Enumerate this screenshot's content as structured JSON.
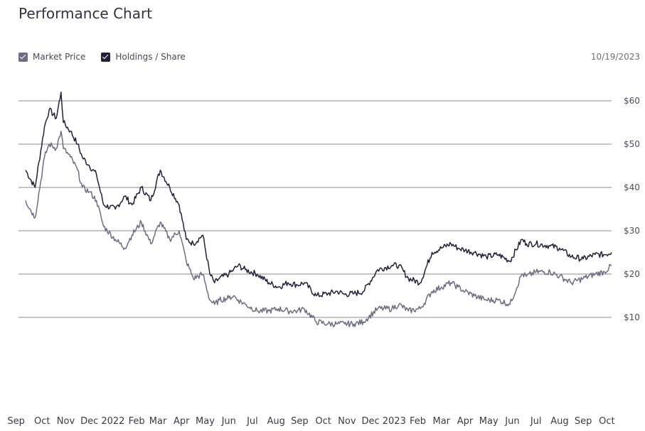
{
  "header": {
    "title": "Performance Chart",
    "date": "10/19/2023"
  },
  "legend": {
    "items": [
      {
        "label": "Market Price",
        "color": "#6f6d86",
        "checked": true
      },
      {
        "label": "Holdings / Share",
        "color": "#24203a",
        "checked": true
      }
    ]
  },
  "chart_data": {
    "type": "line",
    "title": "Performance Chart",
    "xlabel": "",
    "ylabel": "",
    "ylim": [
      0,
      65
    ],
    "y_ticks": [
      {
        "value": 10,
        "label": "$10"
      },
      {
        "value": 20,
        "label": "$20"
      },
      {
        "value": 30,
        "label": "$30"
      },
      {
        "value": 40,
        "label": "$40"
      },
      {
        "value": 50,
        "label": "$50"
      },
      {
        "value": 60,
        "label": "$60"
      }
    ],
    "x_range": [
      -0.3,
      24.8
    ],
    "x_ticks": [
      {
        "value": -0.4,
        "label": "Sep"
      },
      {
        "value": 0.7,
        "label": "Oct"
      },
      {
        "value": 1.7,
        "label": "Nov"
      },
      {
        "value": 2.7,
        "label": "Dec"
      },
      {
        "value": 3.7,
        "label": "2022"
      },
      {
        "value": 4.7,
        "label": "Feb"
      },
      {
        "value": 5.6,
        "label": "Mar"
      },
      {
        "value": 6.6,
        "label": "Apr"
      },
      {
        "value": 7.6,
        "label": "May"
      },
      {
        "value": 8.6,
        "label": "Jun"
      },
      {
        "value": 9.6,
        "label": "Jul"
      },
      {
        "value": 10.6,
        "label": "Aug"
      },
      {
        "value": 11.6,
        "label": "Sep"
      },
      {
        "value": 12.6,
        "label": "Oct"
      },
      {
        "value": 13.6,
        "label": "Nov"
      },
      {
        "value": 14.6,
        "label": "Dec"
      },
      {
        "value": 15.6,
        "label": "2023"
      },
      {
        "value": 16.6,
        "label": "Feb"
      },
      {
        "value": 17.6,
        "label": "Mar"
      },
      {
        "value": 18.6,
        "label": "Apr"
      },
      {
        "value": 19.6,
        "label": "May"
      },
      {
        "value": 20.6,
        "label": "Jun"
      },
      {
        "value": 21.6,
        "label": "Jul"
      },
      {
        "value": 22.6,
        "label": "Aug"
      },
      {
        "value": 23.6,
        "label": "Sep"
      },
      {
        "value": 24.6,
        "label": "Oct"
      }
    ],
    "grid": true,
    "series": [
      {
        "name": "Holdings / Share",
        "color": "#24203a",
        "x": [
          0,
          0.4,
          0.8,
          1.0,
          1.3,
          1.5,
          1.6,
          1.9,
          2.2,
          2.4,
          2.7,
          3.0,
          3.3,
          3.8,
          4.2,
          4.5,
          4.9,
          5.3,
          5.7,
          6.1,
          6.5,
          6.8,
          7.1,
          7.5,
          7.8,
          8.0,
          8.2,
          8.6,
          8.8,
          9.0,
          9.3,
          9.8,
          10.3,
          10.7,
          11.1,
          11.5,
          11.8,
          12.3,
          12.8,
          13.2,
          13.5,
          13.9,
          14.3,
          14.9,
          15.5,
          15.8,
          16.2,
          16.7,
          17.2,
          17.6,
          18.0,
          18.3,
          18.6,
          19.0,
          19.5,
          20.0,
          20.5,
          21.0,
          21.2,
          21.6,
          22.2,
          22.6,
          23.1,
          23.6,
          24.1,
          24.5,
          24.8
        ],
        "y": [
          44,
          40,
          54,
          58,
          56,
          62,
          55,
          53,
          50,
          47,
          45,
          43,
          36,
          35,
          38,
          36,
          40,
          37,
          44,
          40,
          36,
          28,
          27,
          29,
          20,
          18,
          19,
          20,
          21,
          22,
          21,
          20,
          18,
          17,
          18,
          17.5,
          18,
          15,
          15.5,
          16,
          15.3,
          15.5,
          16,
          21,
          22,
          22,
          19,
          18,
          25,
          26,
          27,
          26,
          25.5,
          25,
          24,
          24.5,
          23,
          28,
          27,
          27,
          26.5,
          26,
          24,
          23.5,
          24.5,
          24.5,
          25
        ]
      },
      {
        "name": "Market Price",
        "color": "#6f6d86",
        "x": [
          0,
          0.4,
          0.8,
          1.0,
          1.3,
          1.5,
          1.6,
          1.9,
          2.2,
          2.4,
          2.7,
          3.0,
          3.3,
          3.8,
          4.2,
          4.5,
          4.9,
          5.3,
          5.7,
          6.1,
          6.5,
          6.8,
          7.1,
          7.5,
          7.8,
          8.0,
          8.2,
          8.6,
          8.8,
          9.0,
          9.3,
          9.8,
          10.3,
          10.7,
          11.1,
          11.5,
          11.8,
          12.3,
          12.8,
          13.2,
          13.5,
          13.9,
          14.3,
          14.9,
          15.5,
          15.8,
          16.2,
          16.7,
          17.2,
          17.6,
          18.0,
          18.3,
          18.6,
          19.0,
          19.5,
          20.0,
          20.5,
          21.0,
          21.2,
          21.6,
          22.2,
          22.6,
          23.1,
          23.6,
          24.1,
          24.5,
          24.8
        ],
        "y": [
          37,
          33,
          47,
          50,
          49,
          53,
          49,
          47,
          44,
          40,
          39,
          37,
          31,
          28,
          26,
          29,
          32,
          27,
          32,
          28,
          30,
          23,
          19,
          20,
          14,
          13,
          14,
          14.5,
          15,
          14,
          13,
          11.5,
          11.5,
          12,
          11.5,
          11.5,
          12,
          9,
          8.5,
          8.5,
          8.5,
          8.5,
          9,
          12,
          12,
          13,
          11.5,
          12,
          16,
          17,
          18,
          17,
          16,
          15,
          14,
          14,
          13,
          20,
          19.5,
          20.5,
          20.5,
          19.5,
          18,
          19,
          20,
          20.5,
          22
        ]
      }
    ]
  }
}
